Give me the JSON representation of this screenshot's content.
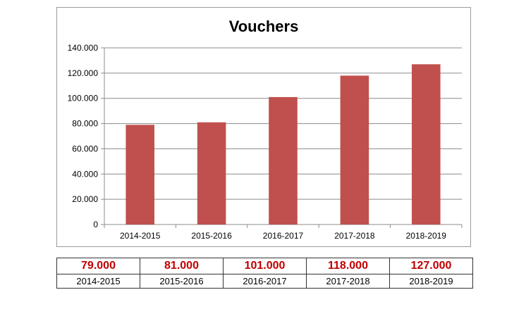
{
  "chart_data": {
    "type": "bar",
    "title": "Vouchers",
    "xlabel": "",
    "ylabel": "",
    "categories": [
      "2014-2015",
      "2015-2016",
      "2016-2017",
      "2017-2018",
      "2018-2019"
    ],
    "values": [
      79000,
      81000,
      101000,
      118000,
      127000
    ],
    "ylim": [
      0,
      140000
    ],
    "yticks": [
      {
        "value": 0,
        "label": "0"
      },
      {
        "value": 20000,
        "label": "20.000"
      },
      {
        "value": 40000,
        "label": "40.000"
      },
      {
        "value": 60000,
        "label": "60.000"
      },
      {
        "value": 80000,
        "label": "80.000"
      },
      {
        "value": 100000,
        "label": "100.000"
      },
      {
        "value": 120000,
        "label": "120.000"
      },
      {
        "value": 140000,
        "label": "140.000"
      }
    ],
    "grid": true,
    "legend": "none",
    "bar_color": "#c0504d"
  },
  "table": {
    "values": [
      "79.000",
      "81.000",
      "101.000",
      "118.000",
      "127.000"
    ],
    "years": [
      "2014-2015",
      "2015-2016",
      "2016-2017",
      "2017-2018",
      "2018-2019"
    ],
    "value_color": "#c00000"
  }
}
